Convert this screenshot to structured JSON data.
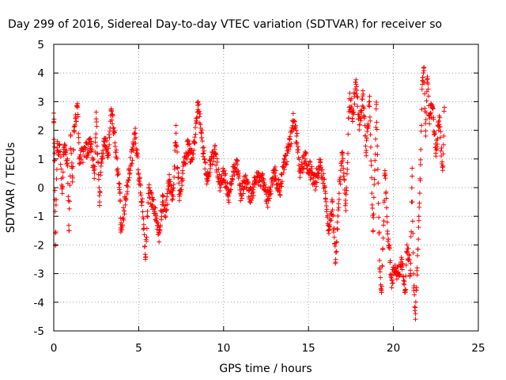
{
  "chart_data": {
    "type": "scatter",
    "title": "Day 299 of 2016, Sidereal Day-to-day VTEC variation (SDTVAR) for receiver so",
    "xlabel": "GPS time / hours",
    "ylabel": "SDTVAR / TECUs",
    "xlim": [
      0,
      25
    ],
    "ylim": [
      -5,
      5
    ],
    "x_ticks": [
      "0",
      "5",
      "10",
      "15",
      "20",
      "25"
    ],
    "y_ticks": [
      "-5",
      "-4",
      "-3",
      "-2",
      "-1",
      "0",
      "1",
      "2",
      "3",
      "4",
      "5"
    ],
    "grid": true,
    "marker": "+",
    "color": "#ff0000",
    "points": {
      "description_free": true,
      "anchors": [
        [
          0.0,
          2.6
        ],
        [
          0.05,
          1.2
        ],
        [
          0.1,
          -2.0
        ],
        [
          0.2,
          1.3
        ],
        [
          0.35,
          1.5
        ],
        [
          0.5,
          0.0
        ],
        [
          0.6,
          1.4
        ],
        [
          0.8,
          1.0
        ],
        [
          0.9,
          -1.5
        ],
        [
          1.0,
          1.8
        ],
        [
          1.1,
          0.2
        ],
        [
          1.2,
          2.0
        ],
        [
          1.4,
          2.8
        ],
        [
          1.5,
          1.0
        ],
        [
          2.2,
          1.5
        ],
        [
          2.4,
          0.5
        ],
        [
          2.5,
          2.4
        ],
        [
          2.7,
          -0.5
        ],
        [
          2.8,
          1.0
        ],
        [
          3.0,
          1.6
        ],
        [
          3.2,
          1.2
        ],
        [
          3.4,
          2.7
        ],
        [
          3.9,
          -0.2
        ],
        [
          3.95,
          -1.55
        ],
        [
          4.8,
          1.9
        ],
        [
          5.0,
          0.5
        ],
        [
          5.2,
          -0.5
        ],
        [
          5.4,
          -2.5
        ],
        [
          5.6,
          0.0
        ],
        [
          5.8,
          -0.6
        ],
        [
          6.0,
          -0.9
        ],
        [
          6.2,
          -1.6
        ],
        [
          6.4,
          -0.5
        ],
        [
          6.6,
          -0.8
        ],
        [
          6.8,
          0.2
        ],
        [
          7.0,
          -0.4
        ],
        [
          7.2,
          1.9
        ],
        [
          7.4,
          -0.3
        ],
        [
          7.6,
          0.5
        ],
        [
          7.9,
          1.5
        ],
        [
          8.1,
          1.0
        ],
        [
          8.3,
          1.6
        ],
        [
          8.5,
          3.0
        ],
        [
          8.7,
          1.9
        ],
        [
          9.0,
          0.3
        ],
        [
          9.2,
          0.8
        ],
        [
          9.5,
          1.2
        ],
        [
          9.8,
          0.0
        ],
        [
          10.0,
          0.5
        ],
        [
          10.3,
          -0.3
        ],
        [
          10.5,
          0.4
        ],
        [
          10.8,
          0.8
        ],
        [
          11.0,
          -0.2
        ],
        [
          11.3,
          0.2
        ],
        [
          11.6,
          -0.3
        ],
        [
          12.0,
          0.4
        ],
        [
          12.3,
          0.2
        ],
        [
          12.6,
          -0.4
        ],
        [
          13.0,
          0.5
        ],
        [
          13.3,
          -0.1
        ],
        [
          13.6,
          0.9
        ],
        [
          13.9,
          1.5
        ],
        [
          14.1,
          2.3
        ],
        [
          14.3,
          1.8
        ],
        [
          14.5,
          0.6
        ],
        [
          14.8,
          1.0
        ],
        [
          15.1,
          0.6
        ],
        [
          15.4,
          0.2
        ],
        [
          15.7,
          0.9
        ],
        [
          16.0,
          -0.2
        ],
        [
          16.2,
          -1.6
        ],
        [
          16.4,
          -0.5
        ],
        [
          16.6,
          -2.6
        ],
        [
          16.8,
          -0.2
        ],
        [
          17.0,
          1.2
        ],
        [
          17.2,
          -0.8
        ],
        [
          17.4,
          3.1
        ],
        [
          17.6,
          2.6
        ],
        [
          17.8,
          3.6
        ],
        [
          18.0,
          2.2
        ],
        [
          18.2,
          3.2
        ],
        [
          18.4,
          1.3
        ],
        [
          18.6,
          3.0
        ],
        [
          18.8,
          -1.5
        ],
        [
          19.0,
          2.9
        ],
        [
          19.2,
          -2.8
        ],
        [
          19.3,
          -3.6
        ],
        [
          19.5,
          0.5
        ],
        [
          19.7,
          -1.8
        ],
        [
          19.9,
          -3.2
        ],
        [
          20.1,
          -2.8
        ],
        [
          20.3,
          -3.1
        ],
        [
          20.5,
          -2.5
        ],
        [
          20.7,
          -3.6
        ],
        [
          20.8,
          -2.0
        ],
        [
          21.0,
          -3.0
        ],
        [
          21.1,
          0.4
        ],
        [
          21.2,
          -3.5
        ],
        [
          21.3,
          -4.4
        ],
        [
          21.4,
          -2.8
        ],
        [
          21.5,
          -1.0
        ],
        [
          21.6,
          0.8
        ],
        [
          21.7,
          3.6
        ],
        [
          21.8,
          4.2
        ],
        [
          21.9,
          1.8
        ],
        [
          22.0,
          3.8
        ],
        [
          22.1,
          2.5
        ],
        [
          22.3,
          2.8
        ],
        [
          22.5,
          1.2
        ],
        [
          22.7,
          2.5
        ],
        [
          22.9,
          0.6
        ],
        [
          23.0,
          2.8
        ]
      ]
    }
  }
}
